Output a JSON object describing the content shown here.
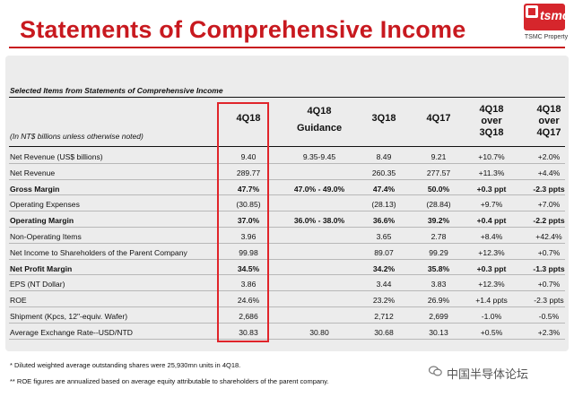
{
  "header": {
    "title": "Statements of Comprehensive Income",
    "logo_text": "tsmc",
    "logo_caption": "TSMC Property"
  },
  "table": {
    "section_title": "Selected Items from Statements of Comprehensive Income",
    "units_note": "(In NT$ billions unless otherwise noted)",
    "columns": {
      "q4_18": "4Q18",
      "guid_1": "4Q18",
      "guid_2": "Guidance",
      "q3_18": "3Q18",
      "q4_17": "4Q17",
      "ovq_1": "4Q18",
      "ovq_2": "over",
      "ovq_3": "3Q18",
      "ovy_1": "4Q18",
      "ovy_2": "over",
      "ovy_3": "4Q17"
    },
    "rows": [
      {
        "label": "Net Revenue (US$ billions)",
        "q4_18": "9.40",
        "guid": "9.35-9.45",
        "q3_18": "8.49",
        "q4_17": "9.21",
        "ovq": "+10.7%",
        "ovy": "+2.0%"
      },
      {
        "label": "Net Revenue",
        "q4_18": "289.77",
        "guid": "",
        "q3_18": "260.35",
        "q4_17": "277.57",
        "ovq": "+11.3%",
        "ovy": "+4.4%"
      },
      {
        "label": "Gross Margin",
        "q4_18": "47.7%",
        "guid": "47.0% - 49.0%",
        "q3_18": "47.4%",
        "q4_17": "50.0%",
        "ovq": "+0.3 ppt",
        "ovy": "-2.3 ppts"
      },
      {
        "label": "Operating Expenses",
        "q4_18": "(30.85)",
        "guid": "",
        "q3_18": "(28.13)",
        "q4_17": "(28.84)",
        "ovq": "+9.7%",
        "ovy": "+7.0%"
      },
      {
        "label": "Operating Margin",
        "q4_18": "37.0%",
        "guid": "36.0% - 38.0%",
        "q3_18": "36.6%",
        "q4_17": "39.2%",
        "ovq": "+0.4 ppt",
        "ovy": "-2.2 ppts"
      },
      {
        "label": "Non-Operating Items",
        "q4_18": "3.96",
        "guid": "",
        "q3_18": "3.65",
        "q4_17": "2.78",
        "ovq": "+8.4%",
        "ovy": "+42.4%"
      },
      {
        "label": "Net Income to Shareholders of the Parent Company",
        "q4_18": "99.98",
        "guid": "",
        "q3_18": "89.07",
        "q4_17": "99.29",
        "ovq": "+12.3%",
        "ovy": "+0.7%"
      },
      {
        "label": "Net Profit Margin",
        "q4_18": "34.5%",
        "guid": "",
        "q3_18": "34.2%",
        "q4_17": "35.8%",
        "ovq": "+0.3 ppt",
        "ovy": "-1.3 ppts"
      },
      {
        "label": "EPS (NT Dollar)",
        "q4_18": "3.86",
        "guid": "",
        "q3_18": "3.44",
        "q4_17": "3.83",
        "ovq": "+12.3%",
        "ovy": "+0.7%"
      },
      {
        "label": "ROE",
        "q4_18": "24.6%",
        "guid": "",
        "q3_18": "23.2%",
        "q4_17": "26.9%",
        "ovq": "+1.4 ppts",
        "ovy": "-2.3 ppts"
      },
      {
        "label": "Shipment (Kpcs, 12\"-equiv. Wafer)",
        "q4_18": "2,686",
        "guid": "",
        "q3_18": "2,712",
        "q4_17": "2,699",
        "ovq": "-1.0%",
        "ovy": "-0.5%"
      },
      {
        "label": "Average Exchange Rate--USD/NTD",
        "q4_18": "30.83",
        "guid": "30.80",
        "q3_18": "30.68",
        "q4_17": "30.13",
        "ovq": "+0.5%",
        "ovy": "+2.3%"
      }
    ],
    "bold_rows": [
      2,
      4,
      7
    ]
  },
  "footnotes": [
    "*   Diluted weighted average outstanding shares were 25,930mn units in 4Q18.",
    "** ROE figures are annualized based on average equity attributable to shareholders of the parent company."
  ],
  "watermark": "中国半导体论坛",
  "colors": {
    "title_red": "#c8191f",
    "highlight_red": "#e0242a",
    "panel_gray": "#ececec"
  }
}
